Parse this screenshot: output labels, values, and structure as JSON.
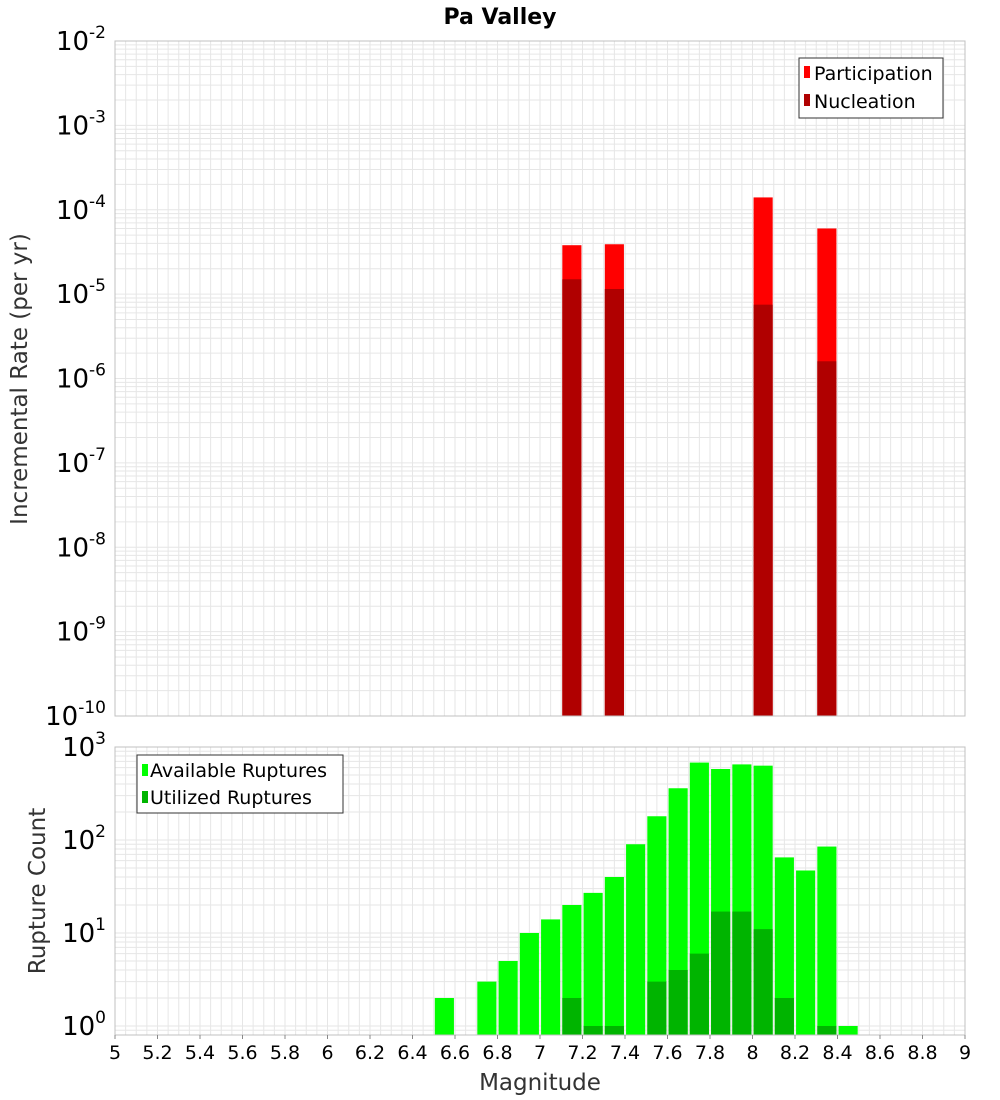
{
  "colors": {
    "participation": "#ff0000",
    "nucleation": "#b00000",
    "available": "#00ff00",
    "utilized": "#00b400",
    "grid": "#e6e6e6",
    "plot_border": "#c0c0c0"
  },
  "chart_data": [
    {
      "type": "bar",
      "title": "Pa Valley",
      "xlabel": "",
      "ylabel": "Incremental Rate (per yr)",
      "xlim": [
        5,
        9
      ],
      "ylim": [
        1e-10,
        0.01
      ],
      "y_scale": "log",
      "grid": true,
      "legend_position": "top-right",
      "bar_width": 0.09,
      "y_ticks": [
        {
          "base": "10",
          "exp": "-10"
        },
        {
          "base": "10",
          "exp": "-9"
        },
        {
          "base": "10",
          "exp": "-8"
        },
        {
          "base": "10",
          "exp": "-7"
        },
        {
          "base": "10",
          "exp": "-6"
        },
        {
          "base": "10",
          "exp": "-5"
        },
        {
          "base": "10",
          "exp": "-4"
        },
        {
          "base": "10",
          "exp": "-3"
        },
        {
          "base": "10",
          "exp": "-2"
        }
      ],
      "series": [
        {
          "name": "Participation",
          "x": [
            7.15,
            7.35,
            8.05,
            8.35
          ],
          "values": [
            3.8e-05,
            3.9e-05,
            0.00014,
            6e-05
          ]
        },
        {
          "name": "Nucleation",
          "x": [
            7.15,
            7.35,
            8.05,
            8.35
          ],
          "values": [
            1.5e-05,
            1.15e-05,
            7.5e-06,
            1.6e-06
          ]
        }
      ]
    },
    {
      "type": "bar",
      "title": "",
      "xlabel": "Magnitude",
      "ylabel": "Rupture Count",
      "xlim": [
        5,
        9
      ],
      "ylim": [
        0.8,
        1000
      ],
      "y_scale": "log",
      "grid": true,
      "legend_position": "top-left",
      "bar_width": 0.09,
      "x_ticks": [
        "5",
        "5.2",
        "5.4",
        "5.6",
        "5.8",
        "6",
        "6.2",
        "6.4",
        "6.6",
        "6.8",
        "7",
        "7.2",
        "7.4",
        "7.6",
        "7.8",
        "8",
        "8.2",
        "8.4",
        "8.6",
        "8.8",
        "9"
      ],
      "y_ticks": [
        {
          "base": "10",
          "exp": "0",
          "value": 1
        },
        {
          "base": "10",
          "exp": "1",
          "value": 10
        },
        {
          "base": "10",
          "exp": "2",
          "value": 100
        },
        {
          "base": "10",
          "exp": "3",
          "value": 1000
        }
      ],
      "series": [
        {
          "name": "Available Ruptures",
          "x": [
            6.55,
            6.75,
            6.85,
            6.95,
            7.05,
            7.15,
            7.25,
            7.35,
            7.45,
            7.55,
            7.65,
            7.75,
            7.85,
            7.95,
            8.05,
            8.15,
            8.25,
            8.35,
            8.45
          ],
          "values": [
            2,
            3,
            5,
            10,
            14,
            20,
            27,
            40,
            90,
            180,
            360,
            680,
            580,
            650,
            630,
            65,
            47,
            85,
            1
          ]
        },
        {
          "name": "Utilized Ruptures",
          "x": [
            7.15,
            7.25,
            7.35,
            7.55,
            7.65,
            7.75,
            7.85,
            7.95,
            8.05,
            8.15,
            8.35
          ],
          "values": [
            2,
            1,
            1,
            3,
            4,
            6,
            17,
            17,
            11,
            2,
            1
          ]
        }
      ]
    }
  ]
}
